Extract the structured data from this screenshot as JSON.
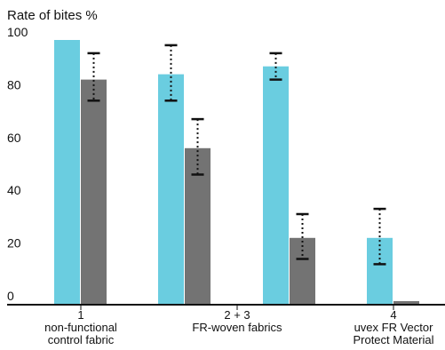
{
  "chart_data": {
    "type": "bar",
    "ylabel": "Rate of bites %",
    "ylim": [
      0,
      100
    ],
    "yticks": [
      0,
      20,
      40,
      60,
      80,
      100
    ],
    "grid": false,
    "legend": "none",
    "groups": [
      {
        "label_lines": [
          "1",
          "non-functional",
          "control fabric"
        ],
        "bars": [
          {
            "value": 100,
            "color": "#6acde0"
          },
          {
            "value": 85,
            "err_low": 77,
            "err_high": 95,
            "color": "#737373"
          }
        ]
      },
      {
        "label_lines": [
          "2 + 3",
          "FR-woven fabrics"
        ],
        "bars": [
          {
            "value": 87,
            "err_low": 77,
            "err_high": 98,
            "color": "#6acde0"
          },
          {
            "value": 59,
            "err_low": 49,
            "err_high": 70,
            "color": "#737373"
          },
          {
            "value": 90,
            "err_low": 85,
            "err_high": 95,
            "color": "#6acde0"
          },
          {
            "value": 25,
            "err_low": 17,
            "err_high": 34,
            "color": "#737373"
          }
        ]
      },
      {
        "label_lines": [
          "4",
          "uvex FR Vector",
          "Protect Material"
        ],
        "bars": [
          {
            "value": 25,
            "err_low": 15,
            "err_high": 36,
            "color": "#6acde0"
          },
          {
            "value": 1,
            "color": "#737373"
          }
        ]
      }
    ]
  }
}
